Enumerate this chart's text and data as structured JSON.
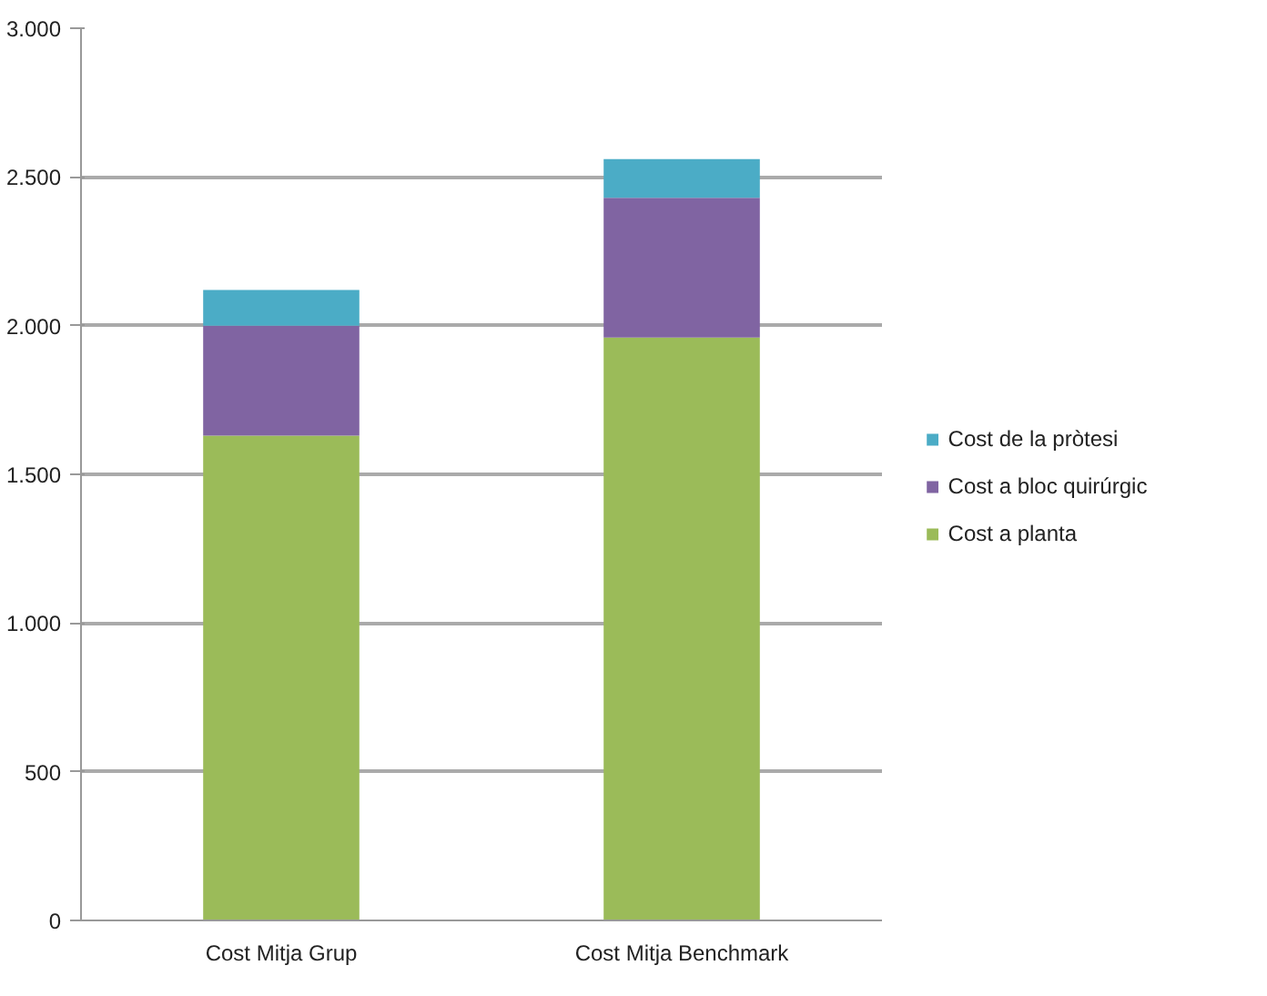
{
  "chart_data": {
    "type": "bar",
    "stacked": true,
    "categories": [
      "Cost Mitja Grup",
      "Cost Mitja Benchmark"
    ],
    "series": [
      {
        "name": "Cost a planta",
        "color": "#9bbb59",
        "values": [
          1630,
          1960
        ]
      },
      {
        "name": "Cost a bloc quirúrgic",
        "color": "#8064a2",
        "values": [
          370,
          470
        ]
      },
      {
        "name": "Cost de la pròtesi",
        "color": "#4bacc6",
        "values": [
          120,
          130
        ]
      }
    ],
    "ylim": [
      0,
      3000
    ],
    "yticks": [
      0,
      500,
      {
        "value": 1000,
        "label": "1.000"
      },
      {
        "value": 1500,
        "label": "1.500"
      },
      {
        "value": 2000,
        "label": "2.000"
      },
      {
        "value": 2500,
        "label": "2.500"
      },
      {
        "value": 3000,
        "label": "3.000"
      }
    ],
    "grid": "y",
    "legend": "right"
  }
}
